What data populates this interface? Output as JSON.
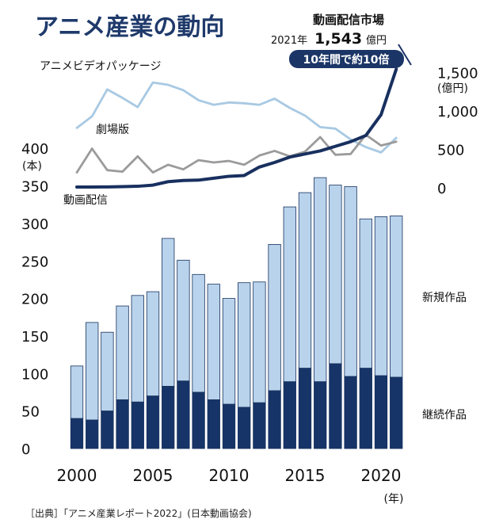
{
  "header": {
    "title": "アニメ産業の動向"
  },
  "callout": {
    "title": "動画配信市場",
    "year_label": "2021年",
    "value": "1,543",
    "value_unit": "億円",
    "badge": "10年間で約10倍"
  },
  "source": "［出典］「アニメ産業レポート2022」(日本動画協会)",
  "colors": {
    "title": "#1f3a6b",
    "continuing": "#173468",
    "new": "#b9d3ec",
    "bar_border": "#18335f",
    "video_package": "#a8c9e3",
    "theatrical": "#9b9b9b",
    "streaming": "#18305f"
  },
  "chart_data": [
    {
      "type": "bar",
      "stacked": true,
      "x": [
        2000,
        2001,
        2002,
        2003,
        2004,
        2005,
        2006,
        2007,
        2008,
        2009,
        2010,
        2011,
        2012,
        2013,
        2014,
        2015,
        2016,
        2017,
        2018,
        2019,
        2020,
        2021
      ],
      "series": [
        {
          "name": "継続作品",
          "values": [
            40,
            38,
            50,
            65,
            62,
            70,
            83,
            90,
            75,
            65,
            59,
            55,
            61,
            77,
            89,
            107,
            89,
            113,
            96,
            107,
            97,
            95
          ]
        },
        {
          "name": "新規作品",
          "values": [
            70,
            130,
            105,
            125,
            142,
            139,
            197,
            161,
            157,
            154,
            141,
            166,
            161,
            195,
            233,
            234,
            272,
            238,
            253,
            199,
            212,
            215
          ]
        }
      ],
      "xticks": [
        "2000",
        "2005",
        "2010",
        "2015",
        "2020"
      ],
      "xunit": "(年)",
      "yticks": [
        "0",
        "50",
        "100",
        "150",
        "200",
        "250",
        "300",
        "350",
        "400"
      ],
      "yunit": "(本)",
      "ylim": [
        0,
        400
      ]
    },
    {
      "type": "line",
      "x": [
        2000,
        2001,
        2002,
        2003,
        2004,
        2005,
        2006,
        2007,
        2008,
        2009,
        2010,
        2011,
        2012,
        2013,
        2014,
        2015,
        2016,
        2017,
        2018,
        2019,
        2020,
        2021
      ],
      "series": [
        {
          "name": "アニメビデオパッケージ",
          "values": [
            780,
            930,
            1280,
            1170,
            1050,
            1370,
            1340,
            1270,
            1140,
            1080,
            1110,
            1100,
            1080,
            1160,
            1040,
            940,
            790,
            770,
            630,
            530,
            460,
            650
          ]
        },
        {
          "name": "劇場版",
          "values": [
            200,
            510,
            230,
            210,
            410,
            200,
            300,
            240,
            360,
            330,
            350,
            300,
            420,
            480,
            410,
            470,
            660,
            430,
            440,
            690,
            550,
            600
          ]
        },
        {
          "name": "動画配信",
          "values": [
            10,
            10,
            12,
            15,
            20,
            35,
            80,
            95,
            100,
            125,
            150,
            160,
            270,
            330,
            400,
            440,
            480,
            540,
            600,
            680,
            950,
            1543
          ]
        }
      ],
      "yticks": [
        "0",
        "500",
        "1,000",
        "1,500"
      ],
      "yunit": "(億円)",
      "ylim": [
        0,
        1700
      ]
    }
  ],
  "labels": {
    "video_package": "アニメビデオパッケージ",
    "theatrical": "劇場版",
    "streaming": "動画配信",
    "new_works": "新規作品",
    "continuing_works": "継続作品"
  }
}
